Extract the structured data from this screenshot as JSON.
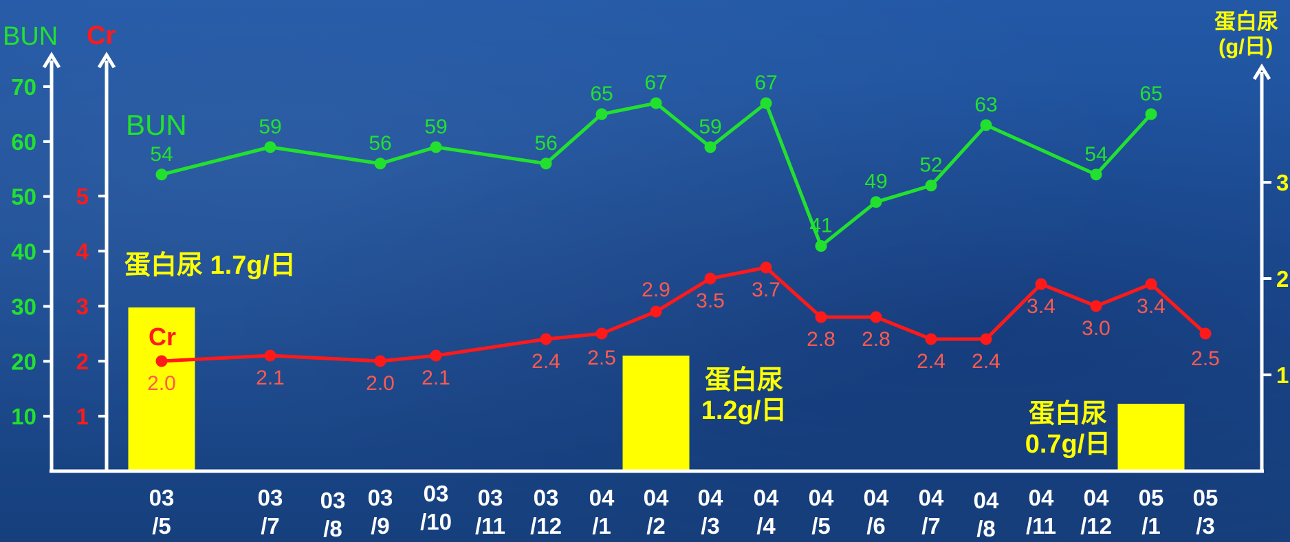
{
  "chart_data": {
    "type": "bar-line-combo",
    "categories": [
      "03\n/5",
      "03\n/7",
      "03\n/8",
      "03\n/9",
      "03\n/10",
      "03\n/11",
      "03\n/12",
      "04\n/1",
      "04\n/2",
      "04\n/3",
      "04\n/4",
      "04\n/5",
      "04\n/6",
      "04\n/7",
      "04\n/8",
      "04\n/11",
      "04\n/12",
      "05\n/1",
      "05\n/3"
    ],
    "axes": {
      "bun": {
        "title": "BUN",
        "ticks": [
          "10",
          "20",
          "30",
          "40",
          "50",
          "60",
          "70"
        ],
        "ylim": [
          0,
          70
        ],
        "color": "#22e12e"
      },
      "cr": {
        "title": "Cr",
        "ticks": [
          "1",
          "2",
          "3",
          "4",
          "5"
        ],
        "ylim": [
          0,
          5
        ],
        "color": "#ff1a1a"
      },
      "protein": {
        "title_line1": "蛋白尿",
        "title_line2": "(g/日)",
        "ticks": [
          "1",
          "2",
          "3"
        ],
        "ylim": [
          0,
          3.4
        ],
        "color": "#ffff00"
      }
    },
    "series": [
      {
        "name": "BUN",
        "axis": "bun",
        "type": "line",
        "color": "#22e12e",
        "points": [
          {
            "x": "03/5",
            "y": 54,
            "label": "54"
          },
          {
            "x": "03/7",
            "y": 59,
            "label": "59"
          },
          {
            "x": "03/9",
            "y": 56,
            "label": "56"
          },
          {
            "x": "03/10",
            "y": 59,
            "label": "59"
          },
          {
            "x": "03/12",
            "y": 56,
            "label": "56"
          },
          {
            "x": "04/1",
            "y": 65,
            "label": "65"
          },
          {
            "x": "04/2",
            "y": 67,
            "label": "67"
          },
          {
            "x": "04/3",
            "y": 59,
            "label": "59"
          },
          {
            "x": "04/4",
            "y": 67,
            "label": "67"
          },
          {
            "x": "04/5",
            "y": 41,
            "label": "41"
          },
          {
            "x": "04/6",
            "y": 49,
            "label": "49"
          },
          {
            "x": "04/7",
            "y": 52,
            "label": "52"
          },
          {
            "x": "04/8",
            "y": 63,
            "label": "63"
          },
          {
            "x": "04/12",
            "y": 54,
            "label": "54"
          },
          {
            "x": "05/1",
            "y": 65,
            "label": "65"
          }
        ]
      },
      {
        "name": "Cr",
        "axis": "cr",
        "type": "line",
        "color": "#ff1a1a",
        "points": [
          {
            "x": "03/5",
            "y": 2.0,
            "label": "2.0"
          },
          {
            "x": "03/7",
            "y": 2.1,
            "label": "2.1"
          },
          {
            "x": "03/9",
            "y": 2.0,
            "label": "2.0"
          },
          {
            "x": "03/10",
            "y": 2.1,
            "label": "2.1"
          },
          {
            "x": "03/12",
            "y": 2.4,
            "label": "2.4"
          },
          {
            "x": "04/1",
            "y": 2.5,
            "label": "2.5"
          },
          {
            "x": "04/2",
            "y": 2.9,
            "label": "2.9"
          },
          {
            "x": "04/3",
            "y": 3.5,
            "label": "3.5"
          },
          {
            "x": "04/4",
            "y": 3.7,
            "label": "3.7"
          },
          {
            "x": "04/5",
            "y": 2.8,
            "label": "2.8"
          },
          {
            "x": "04/6",
            "y": 2.8,
            "label": "2.8"
          },
          {
            "x": "04/7",
            "y": 2.4,
            "label": "2.4"
          },
          {
            "x": "04/8",
            "y": 2.4,
            "label": "2.4"
          },
          {
            "x": "04/11",
            "y": 3.4,
            "label": "3.4"
          },
          {
            "x": "04/12",
            "y": 3.0,
            "label": "3.0"
          },
          {
            "x": "05/1",
            "y": 3.4,
            "label": "3.4"
          },
          {
            "x": "05/3",
            "y": 2.5,
            "label": "2.5"
          }
        ]
      },
      {
        "name": "蛋白尿",
        "axis": "protein",
        "type": "bar",
        "color": "#ffff00",
        "points": [
          {
            "x": "03/5",
            "y": 1.7,
            "label": "蛋白尿 1.7g/日"
          },
          {
            "x": "04/2",
            "y": 1.2,
            "label_line1": "蛋白尿",
            "label_line2": "1.2g/日"
          },
          {
            "x": "05/1",
            "y": 0.7,
            "label_line1": "蛋白尿",
            "label_line2": "0.7g/日"
          }
        ]
      }
    ]
  }
}
